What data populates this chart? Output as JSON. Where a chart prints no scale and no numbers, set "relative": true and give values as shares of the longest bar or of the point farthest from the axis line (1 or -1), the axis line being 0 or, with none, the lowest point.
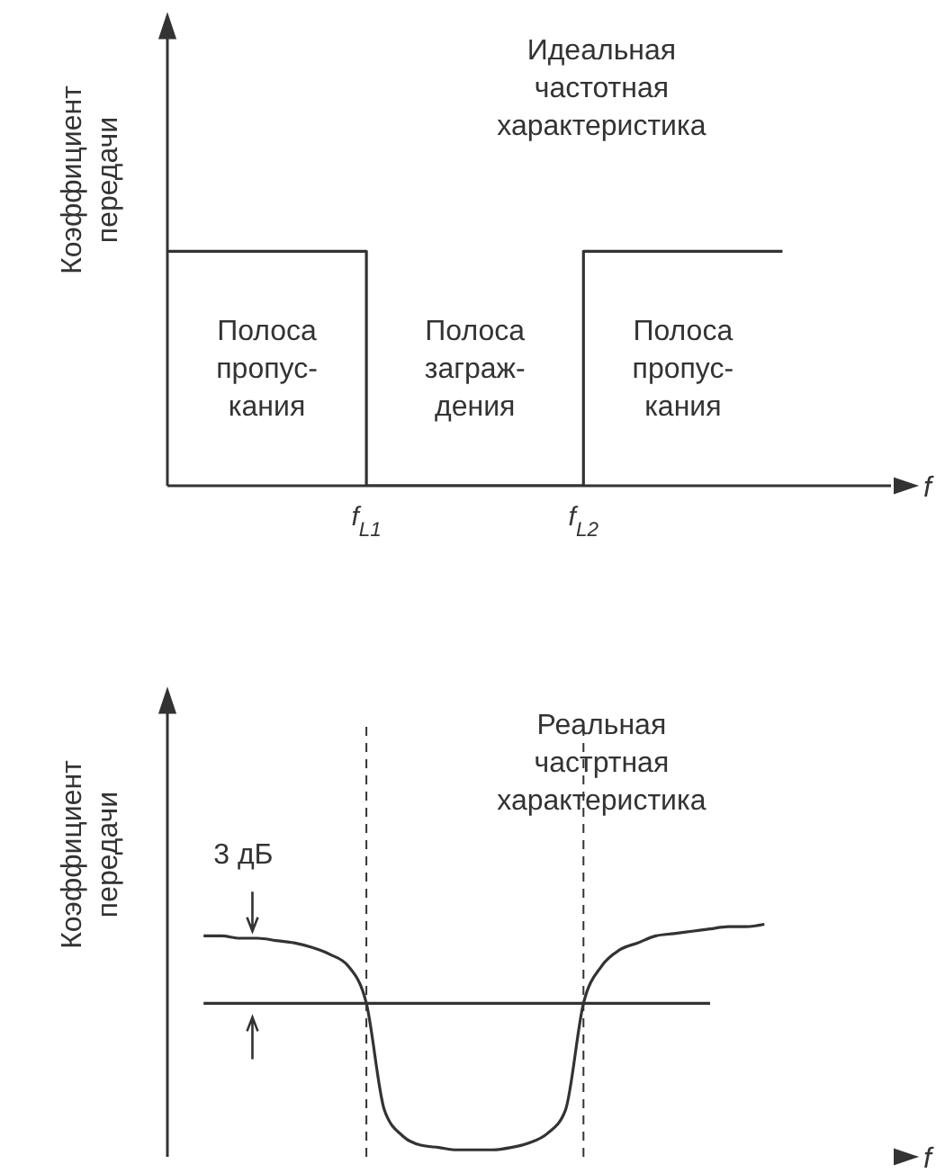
{
  "chart_data": [
    {
      "type": "step",
      "title": "Идеальная частотная характеристика",
      "xlabel": "f",
      "ylabel": "Коэффициент передачи",
      "relative": true,
      "categories": [
        null,
        null,
        null,
        null,
        null,
        null,
        null,
        null,
        null,
        null,
        null,
        "f$_{L1}$",
        null,
        null,
        null,
        null,
        null,
        null,
        null,
        null,
        null,
        null,
        null,
        "f$_{L2}$",
        null,
        null,
        null,
        null,
        null,
        null,
        null,
        null,
        null,
        null,
        null,
        null,
        null,
        null,
        null,
        null,
        null
      ],
      "series": [
        {
          "color": "#333333",
          "values": [
            1,
            1,
            1,
            1,
            1,
            1,
            1,
            1,
            1,
            1,
            1,
            0,
            0,
            0,
            0,
            0,
            0,
            0,
            0,
            0,
            0,
            0,
            0,
            1,
            1,
            1,
            1,
            1,
            1,
            1,
            1,
            1,
            1,
            1,
            1,
            null,
            null,
            null,
            null,
            null,
            null
          ]
        }
      ],
      "annotations": [
        "Полоса\nпропус-\nкания",
        "Полоса\nзаграж-\nдения",
        "Полоса\nпропус-\nкания"
      ]
    },
    {
      "type": "line",
      "title": "Реальная частртная характеристика",
      "xlabel": "f",
      "ylabel": "Коэффициент передачи",
      "relative": true,
      "tick_labels": false,
      "categories": [
        null,
        null,
        null,
        null,
        null,
        null,
        null,
        null,
        null,
        null,
        null,
        "f$_{L1}$",
        null,
        null,
        null,
        null,
        null,
        null,
        null,
        null,
        null,
        null,
        null,
        "f$_{L2}$",
        null,
        null,
        null,
        null,
        null,
        null,
        null,
        null,
        null,
        null,
        null,
        null,
        null,
        null,
        null,
        null,
        null
      ],
      "series": [
        {
          "color": "#333333",
          "values": [
            null,
            null,
            0.95,
            0.95,
            0.94,
            0.94,
            0.93,
            0.92,
            0.9,
            0.87,
            0.82,
            0.66,
            0.2,
            0.09,
            0.05,
            0.04,
            0.03,
            0.03,
            0.03,
            0.04,
            0.06,
            0.1,
            0.2,
            0.66,
            0.82,
            0.89,
            0.92,
            0.95,
            0.96,
            0.97,
            0.98,
            0.99,
            0.99,
            1,
            null,
            null,
            null,
            null,
            null,
            null,
            null
          ]
        },
        {
          "color": "#333333",
          "values": [
            null,
            null,
            0.66,
            0.66,
            0.66,
            0.66,
            0.66,
            0.66,
            0.66,
            0.66,
            0.66,
            0.66,
            0.66,
            0.66,
            0.66,
            0.66,
            0.66,
            0.66,
            0.66,
            0.66,
            0.66,
            0.66,
            0.66,
            0.66,
            0.66,
            0.66,
            0.66,
            0.66,
            0.66,
            0.66,
            0.66,
            null,
            null,
            null,
            null,
            null,
            null,
            null,
            null,
            null,
            null
          ]
        }
      ],
      "ref_lines": [
        {
          "axis": "x",
          "value": "f$_{L1}$",
          "line_style": "dashed"
        },
        {
          "axis": "x",
          "value": "f$_{L2}$",
          "line_style": "dashed"
        }
      ],
      "annotations": [
        "3 дБ"
      ]
    }
  ]
}
